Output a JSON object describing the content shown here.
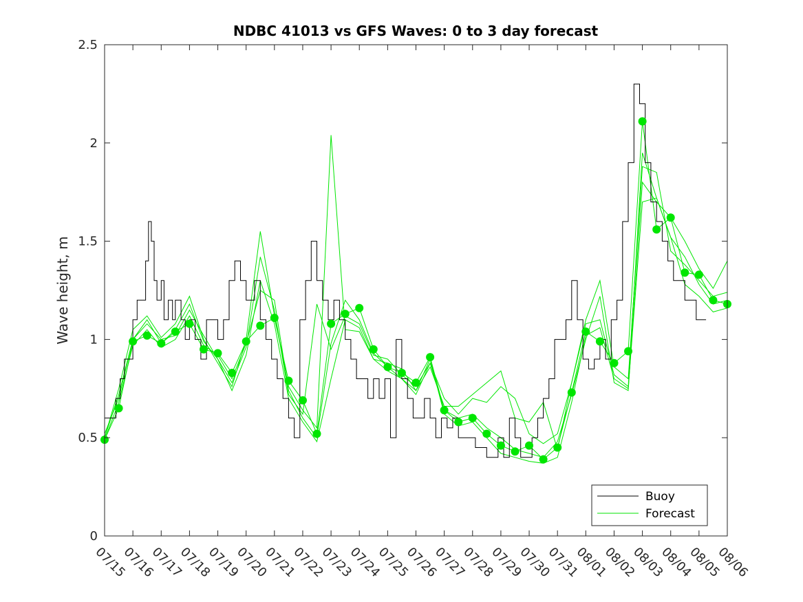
{
  "chart_data": {
    "type": "line",
    "title": "NDBC 41013 vs GFS Waves: 0 to 3 day forecast",
    "xlabel": "",
    "ylabel": "Wave height, m",
    "xlim": [
      0,
      22
    ],
    "ylim": [
      0,
      2.5
    ],
    "x_unit": "days from 07/15",
    "x_tick_labels": [
      "07/15",
      "07/16",
      "07/17",
      "07/18",
      "07/19",
      "07/20",
      "07/21",
      "07/22",
      "07/23",
      "07/24",
      "07/25",
      "07/26",
      "07/27",
      "07/28",
      "07/29",
      "07/30",
      "07/31",
      "08/01",
      "08/02",
      "08/03",
      "08/04",
      "08/05",
      "08/06"
    ],
    "y_ticks": [
      0,
      0.5,
      1,
      1.5,
      2,
      2.5
    ],
    "y_tick_labels": [
      "0",
      "0.5",
      "1",
      "1.5",
      "2",
      "2.5"
    ],
    "legend": {
      "position": "bottom-right",
      "entries": [
        "Buoy",
        "Forecast"
      ]
    },
    "colors": {
      "buoy": "#000000",
      "forecast": "#00e600",
      "axis": "#262626"
    },
    "series": [
      {
        "name": "Buoy",
        "x": [
          0,
          0.25,
          0.4,
          0.55,
          0.7,
          0.85,
          1.0,
          1.15,
          1.3,
          1.45,
          1.55,
          1.65,
          1.75,
          1.85,
          2.0,
          2.1,
          2.25,
          2.4,
          2.5,
          2.7,
          2.85,
          3.0,
          3.2,
          3.4,
          3.6,
          3.8,
          4.0,
          4.2,
          4.4,
          4.6,
          4.8,
          5.0,
          5.1,
          5.3,
          5.5,
          5.7,
          5.9,
          6.1,
          6.3,
          6.5,
          6.7,
          6.9,
          7.1,
          7.3,
          7.5,
          7.7,
          7.9,
          8.1,
          8.3,
          8.5,
          8.7,
          8.9,
          9.1,
          9.3,
          9.5,
          9.7,
          9.9,
          10.1,
          10.3,
          10.5,
          10.7,
          10.9,
          11.1,
          11.3,
          11.5,
          11.7,
          11.9,
          12.1,
          12.3,
          12.5,
          12.7,
          12.9,
          13.1,
          13.3,
          13.5,
          13.7,
          13.9,
          14.1,
          14.3,
          14.5,
          14.7,
          14.9,
          15.1,
          15.3,
          15.5,
          15.7,
          15.9,
          16.1,
          16.3,
          16.5,
          16.7,
          16.9,
          17.1,
          17.3,
          17.5,
          17.7,
          17.9,
          18.1,
          18.3,
          18.5,
          18.7,
          18.9,
          19.1,
          19.3,
          19.5,
          19.7,
          19.9,
          20.1,
          20.3,
          20.5,
          20.7,
          20.9,
          21.1,
          21.25
        ],
        "values": [
          0.6,
          0.6,
          0.7,
          0.8,
          0.9,
          0.9,
          1.1,
          1.2,
          1.2,
          1.4,
          1.6,
          1.5,
          1.3,
          1.2,
          1.3,
          1.1,
          1.2,
          1.1,
          1.2,
          1.1,
          1.0,
          1.1,
          1.0,
          0.9,
          1.1,
          1.1,
          1.0,
          1.1,
          1.3,
          1.4,
          1.3,
          1.2,
          1.2,
          1.3,
          1.1,
          1.0,
          0.9,
          0.8,
          0.7,
          0.6,
          0.5,
          1.1,
          1.3,
          1.5,
          1.3,
          1.2,
          1.1,
          1.2,
          1.1,
          1.0,
          0.9,
          0.8,
          0.8,
          0.7,
          0.8,
          0.7,
          0.8,
          0.5,
          1.0,
          0.8,
          0.7,
          0.6,
          0.6,
          0.7,
          0.6,
          0.5,
          0.6,
          0.55,
          0.6,
          0.5,
          0.5,
          0.5,
          0.45,
          0.45,
          0.4,
          0.4,
          0.5,
          0.4,
          0.6,
          0.5,
          0.4,
          0.4,
          0.5,
          0.6,
          0.7,
          0.8,
          1.0,
          1.0,
          1.1,
          1.3,
          1.1,
          0.9,
          0.85,
          0.9,
          1.0,
          0.9,
          1.1,
          1.2,
          1.6,
          1.9,
          2.3,
          2.2,
          1.9,
          1.7,
          1.6,
          1.5,
          1.4,
          1.3,
          1.3,
          1.2,
          1.2,
          1.1,
          1.1,
          1.1
        ]
      },
      {
        "name": "Forecast",
        "x": [
          0,
          0.5,
          1,
          1.5,
          2,
          2.5,
          3,
          3.5,
          4,
          4.5,
          5,
          5.5,
          6,
          6.5,
          7,
          7.5,
          8,
          8.5,
          9,
          9.5,
          10,
          10.5,
          11,
          11.5,
          12,
          12.5,
          13,
          13.5,
          14,
          14.5,
          15,
          15.5,
          16,
          16.5,
          17,
          17.5,
          18,
          18.5,
          19,
          19.5,
          20,
          20.5,
          21,
          21.5,
          22
        ],
        "values": [
          0.49,
          0.65,
          0.99,
          1.02,
          0.98,
          1.04,
          1.08,
          0.95,
          0.93,
          0.83,
          0.99,
          1.07,
          1.11,
          0.79,
          0.69,
          0.52,
          1.08,
          1.13,
          1.16,
          0.95,
          0.86,
          0.83,
          0.78,
          0.91,
          0.64,
          0.58,
          0.6,
          0.52,
          0.46,
          0.43,
          0.46,
          0.39,
          0.45,
          0.73,
          1.04,
          0.99,
          0.88,
          0.94,
          2.11,
          1.56,
          1.62,
          1.34,
          1.33,
          1.2,
          1.18
        ]
      },
      {
        "name": "",
        "x": [
          0,
          0.5,
          1,
          1.5,
          2,
          2.5,
          3,
          3.5,
          4,
          4.5,
          5,
          5.5,
          6,
          6.5,
          7,
          7.5,
          8,
          8.5,
          9,
          9.5,
          10,
          10.5,
          11,
          11.5,
          12,
          12.5,
          13,
          13.5,
          14,
          14.5,
          15,
          15.5,
          16,
          16.5,
          17,
          17.5,
          18,
          18.5,
          19,
          19.5,
          20,
          20.5,
          21,
          21.5,
          22
        ],
        "values": [
          0.52,
          0.7,
          1.0,
          1.08,
          1.0,
          1.02,
          1.15,
          1.02,
          0.9,
          0.78,
          0.96,
          1.42,
          1.15,
          0.72,
          0.62,
          1.18,
          0.95,
          1.12,
          1.08,
          0.92,
          0.9,
          0.82,
          0.76,
          0.88,
          0.7,
          0.62,
          0.7,
          0.68,
          0.76,
          0.7,
          0.52,
          0.47,
          0.52,
          0.78,
          1.08,
          1.1,
          0.82,
          0.76,
          1.95,
          1.72,
          1.52,
          1.42,
          1.28,
          1.18,
          1.2
        ]
      },
      {
        "name": "",
        "x": [
          0,
          0.5,
          1,
          1.5,
          2,
          2.5,
          3,
          3.5,
          4,
          4.5,
          5,
          5.5,
          6,
          6.5,
          7,
          7.5,
          8,
          8.5,
          9,
          9.5,
          10,
          10.5,
          11,
          11.5,
          12,
          12.5,
          13,
          13.5,
          14,
          14.5,
          15,
          15.5,
          16,
          16.5,
          17,
          17.5,
          18,
          18.5,
          19,
          19.5,
          20,
          20.5,
          21,
          21.5,
          22
        ],
        "values": [
          0.5,
          0.75,
          1.05,
          1.12,
          1.01,
          1.08,
          1.22,
          1.0,
          0.88,
          0.76,
          1.0,
          1.55,
          1.12,
          0.76,
          0.64,
          0.55,
          2.04,
          1.05,
          1.04,
          0.9,
          0.88,
          0.85,
          0.74,
          0.86,
          0.66,
          0.66,
          0.72,
          0.78,
          0.84,
          0.6,
          0.58,
          0.68,
          0.44,
          0.78,
          1.1,
          1.3,
          0.86,
          0.8,
          1.88,
          1.85,
          1.45,
          1.38,
          1.3,
          1.22,
          1.24
        ]
      },
      {
        "name": "",
        "x": [
          0,
          0.5,
          1,
          1.5,
          2,
          2.5,
          3,
          3.5,
          4,
          4.5,
          5,
          5.5,
          6,
          6.5,
          7,
          7.5,
          8,
          8.5,
          9,
          9.5,
          10,
          10.5,
          11,
          11.5,
          12,
          12.5,
          13,
          13.5,
          14,
          14.5,
          15,
          15.5,
          16,
          16.5,
          17,
          17.5,
          18,
          18.5,
          19,
          19.5,
          20,
          20.5,
          21,
          21.5,
          22
        ],
        "values": [
          0.49,
          0.68,
          0.97,
          1.05,
          0.96,
          1.0,
          1.12,
          0.97,
          0.92,
          0.8,
          0.98,
          1.25,
          1.2,
          0.74,
          0.6,
          0.5,
          0.98,
          1.2,
          1.1,
          0.93,
          0.86,
          0.8,
          0.74,
          0.9,
          0.62,
          0.56,
          0.58,
          0.5,
          0.42,
          0.4,
          0.38,
          0.37,
          0.4,
          0.68,
          1.02,
          1.06,
          0.8,
          0.75,
          1.7,
          1.72,
          1.52,
          1.28,
          1.22,
          1.14,
          1.16
        ]
      },
      {
        "name": "",
        "x": [
          0,
          0.5,
          1,
          1.5,
          2,
          2.5,
          3,
          3.5,
          4,
          4.5,
          5,
          5.5,
          6,
          6.5,
          7,
          7.5,
          8,
          8.5,
          9,
          9.5,
          10,
          10.5,
          11,
          11.5,
          12,
          12.5,
          13,
          13.5,
          14,
          14.5,
          15,
          15.5,
          16,
          16.5,
          17,
          17.5,
          18,
          18.5,
          19,
          19.5,
          20,
          20.5,
          21,
          21.5,
          22
        ],
        "values": [
          0.5,
          0.72,
          1.0,
          1.1,
          0.98,
          1.05,
          1.18,
          0.99,
          0.9,
          0.74,
          0.92,
          1.3,
          1.08,
          0.7,
          0.58,
          0.48,
          0.8,
          1.1,
          1.06,
          0.9,
          0.84,
          0.8,
          0.72,
          0.88,
          0.64,
          0.6,
          0.62,
          0.55,
          0.5,
          0.44,
          0.42,
          0.4,
          0.48,
          0.72,
          1.0,
          1.22,
          0.78,
          0.74,
          1.8,
          1.7,
          1.62,
          1.5,
          1.36,
          1.26,
          1.4
        ]
      }
    ]
  }
}
